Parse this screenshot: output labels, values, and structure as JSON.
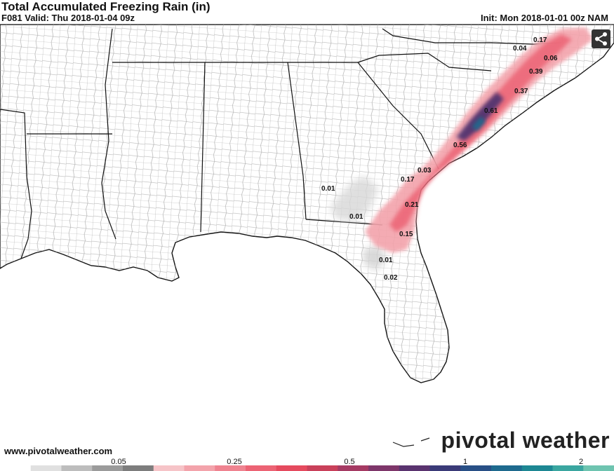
{
  "header": {
    "title": "Total Accumulated Freezing Rain (in)",
    "valid_line": "F081 Valid: Thu 2018-01-04 09z",
    "init_line": "Init: Mon 2018-01-01 00z NAM"
  },
  "map": {
    "region": "Southeastern United States",
    "value_labels": [
      {
        "text": "0.17"
      },
      {
        "text": "0.04"
      },
      {
        "text": "0.06"
      },
      {
        "text": "0.39"
      },
      {
        "text": "0.37"
      },
      {
        "text": "0.61"
      },
      {
        "text": "0.56"
      },
      {
        "text": "0.03"
      },
      {
        "text": "0.17"
      },
      {
        "text": "0.01"
      },
      {
        "text": "0.01"
      },
      {
        "text": "0.21"
      },
      {
        "text": "0.15"
      },
      {
        "text": "0.01"
      },
      {
        "text": "0.02"
      }
    ],
    "colors": {
      "land_fill": "#ffffff",
      "county_lines": "#9a9a9a",
      "state_lines": "#000000",
      "light_ice": "#cfcfcf",
      "pink": "#f4a0a8",
      "red": "#ef5a6a",
      "dark": "#4a3270"
    }
  },
  "share_icon": "share-icon",
  "footer": {
    "url": "www.pivotalweather.com",
    "brand": "pivotal weather"
  },
  "colorbar": {
    "labels": [
      "0.05",
      "0.25",
      "0.5",
      "1",
      "2"
    ],
    "colors": [
      "#ffffff",
      "#e0e0e0",
      "#bdbdbd",
      "#9b9b9b",
      "#7d7d7d",
      "#f6c4c8",
      "#f3a3ab",
      "#ef8390",
      "#ec6374",
      "#e54a5e",
      "#c9405a",
      "#a53a63",
      "#7e366a",
      "#5a336f",
      "#3a3a78",
      "#284f86",
      "#1e6a8e",
      "#1d8793",
      "#3aa6a0",
      "#6ec4b0"
    ]
  }
}
